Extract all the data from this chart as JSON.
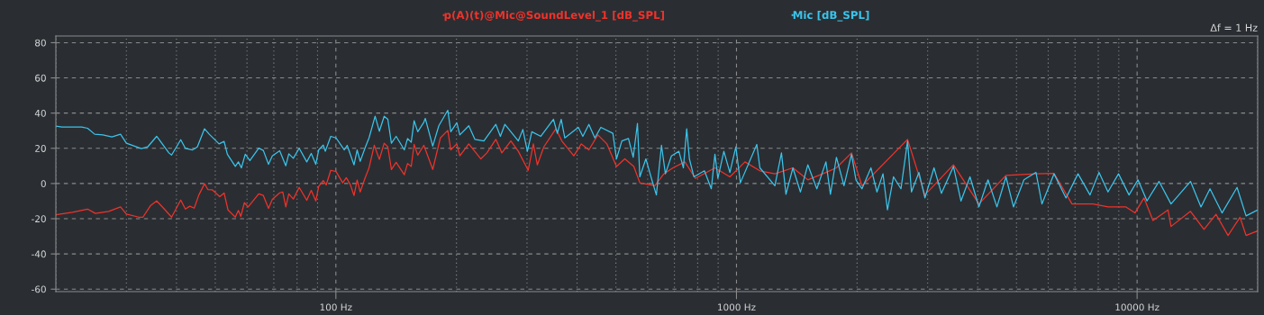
{
  "chart_data": {
    "type": "line",
    "log": "x",
    "grid": true,
    "legend": "top",
    "line_style": "solid",
    "xlim": [
      20,
      20000
    ],
    "ylim": [
      -61.4,
      83.8
    ],
    "xticks": [
      {
        "value": 100,
        "label": "100 Hz"
      },
      {
        "value": 1000,
        "label": "1000 Hz"
      },
      {
        "value": 10000,
        "label": "10000 Hz"
      }
    ],
    "yticks": [
      -60,
      -40,
      -20,
      0,
      20,
      40,
      60,
      80
    ],
    "annotations": [
      "Δf = 1 Hz"
    ],
    "series": [
      {
        "name": "p(A)(t)@Mic@SoundLevel_1 [dB_SPL]",
        "color": "#f0322a",
        "x": [
          20,
          22.0,
          24.0,
          25.1,
          27.1,
          29.0,
          30.0,
          32.2,
          33.0,
          34.5,
          35.7,
          37.3,
          38.9,
          41.0,
          42.1,
          43.2,
          44.3,
          45.5,
          47.0,
          47.9,
          49.1,
          51.3,
          52.6,
          53.8,
          56.1,
          57.1,
          57.9,
          59.1,
          60.4,
          64.2,
          65.9,
          67.9,
          69.4,
          72.4,
          73.7,
          75.0,
          76.3,
          78.3,
          81.0,
          84.6,
          86.8,
          89.1,
          90.6,
          93.0,
          94.6,
          97.1,
          100.1,
          104,
          106.2,
          108.6,
          111,
          113,
          115,
          118.4,
          121,
          124.7,
          128.4,
          132,
          134.8,
          137.6,
          141.4,
          148.2,
          151,
          154.2,
          156.8,
          160.1,
          165.8,
          174.5,
          182.3,
          190.3,
          193.6,
          200.4,
          203.9,
          214.7,
          230.1,
          238.2,
          250.8,
          259.6,
          273.4,
          285.4,
          302.1,
          311.1,
          318.3,
          330.4,
          354.1,
          366.4,
          392.6,
          409.9,
          428.1,
          450.8,
          474.9,
          501.7,
          526.3,
          554.3,
          573.8,
          625.6,
          658.8,
          694.0,
          743.4,
          789.7,
          883.5,
          962.7,
          1050,
          1144,
          1247,
          1383,
          1507,
          1672,
          1776,
          1937,
          2057,
          2673,
          2954,
          3480,
          4029,
          4706,
          5593,
          6202,
          6879,
          7762,
          8459,
          9382,
          9880,
          10405,
          10957,
          11947,
          12153,
          13591,
          14689,
          15740,
          16866,
          18072,
          18707,
          20000
        ],
        "values": [
          -17.7,
          -16.4,
          -14.5,
          -17.0,
          -15.8,
          -13.3,
          -17.4,
          -19.1,
          -19.1,
          -12.4,
          -9.9,
          -14.5,
          -19.1,
          -9.4,
          -14.5,
          -12.9,
          -14.0,
          -6.5,
          -0.1,
          -3.4,
          -3.5,
          -7.5,
          -5.4,
          -15.0,
          -19.1,
          -15.3,
          -18.7,
          -10.9,
          -13.3,
          -5.9,
          -6.8,
          -14.1,
          -9.0,
          -5.3,
          -4.8,
          -13.3,
          -5.9,
          -8.8,
          -2.2,
          -9.5,
          -3.9,
          -9.9,
          -1.7,
          1.7,
          -0.8,
          7.5,
          6.8,
          0.4,
          3.3,
          -0.5,
          -6.8,
          1.9,
          -4.8,
          3.4,
          8.9,
          21.7,
          13.7,
          22.9,
          20.8,
          7.9,
          12.0,
          5.0,
          11.4,
          9.7,
          22.2,
          16.1,
          21.7,
          8.0,
          25.9,
          30.2,
          19.1,
          22.5,
          15.7,
          22.5,
          14.0,
          17.4,
          25.1,
          17.4,
          24.2,
          18.3,
          7.5,
          22.5,
          10.6,
          20.8,
          31.1,
          24.2,
          15.7,
          22.5,
          19.1,
          27.6,
          22.5,
          9.7,
          14.0,
          9.7,
          0.4,
          -1.3,
          5.5,
          8.9,
          12.3,
          2.9,
          8.9,
          3.8,
          12.3,
          7.2,
          5.5,
          8.9,
          2.1,
          6.3,
          8.9,
          17.4,
          -1.3,
          25.1,
          -6.5,
          10.6,
          -11.6,
          4.6,
          5.5,
          5.8,
          -11.6,
          -11.6,
          -13.3,
          -13.3,
          -16.7,
          -8.2,
          -21.0,
          -15.0,
          -24.4,
          -15.8,
          -26.1,
          -17.5,
          -29.5,
          -19.2,
          -29.5,
          -26.9
        ]
      },
      {
        "name": "Mic [dB_SPL]",
        "color": "#3bc4ea",
        "x": [
          20,
          20.7,
          23.2,
          24.0,
          25.0,
          26.2,
          27.6,
          29.0,
          30.0,
          32.7,
          33.9,
          35.7,
          38.3,
          38.9,
          41.0,
          42.1,
          43.9,
          45.1,
          47.0,
          48.3,
          51.1,
          52.6,
          53.6,
          56.1,
          57.1,
          58.1,
          59.4,
          61.0,
          64.2,
          65.9,
          67.9,
          69.4,
          72.4,
          75.0,
          76.3,
          78.3,
          81.0,
          84.6,
          86.8,
          89.1,
          90.6,
          93.0,
          94.1,
          97.1,
          100.1,
          105,
          106.7,
          111,
          113,
          115,
          118.4,
          121,
          125.3,
          128.4,
          132,
          134.8,
          137.6,
          141.4,
          148.2,
          151,
          154.2,
          156.8,
          160.1,
          165.8,
          167.2,
          174.5,
          180.7,
          190.3,
          193.6,
          200.4,
          203.9,
          214.7,
          222.3,
          234.1,
          250.8,
          257.4,
          264.1,
          285.4,
          292.9,
          300.6,
          308.4,
          324.8,
          349.2,
          357.1,
          365.2,
          372.8,
          402.9,
          413.5,
          428.1,
          443.1,
          458.6,
          491.4,
          501.7,
          517.5,
          537.4,
          552.4,
          565.9,
          573.8,
          594.0,
          614.9,
          631.0,
          649.8,
          664.6,
          688.0,
          718.2,
          737.0,
          751.2,
          762.9,
          782.8,
          831.7,
          865.3,
          883.5,
          898.7,
          930.0,
          962.7,
          996.6,
          1022.6,
          1124,
          1144,
          1247,
          1295,
          1329,
          1383,
          1444,
          1507,
          1587,
          1672,
          1716,
          1776,
          1855,
          1937,
          1987,
          2057,
          2166,
          2242,
          2321,
          2382,
          2466,
          2574,
          2673,
          2734,
          2854,
          2954,
          3112,
          3248,
          3480,
          3634,
          3827,
          4029,
          4244,
          4468,
          4706,
          4914,
          5219,
          5593,
          5788,
          6202,
          6646,
          7120,
          7629,
          8034,
          8459,
          8987,
          9546,
          10050,
          10585,
          11342,
          12153,
          13591,
          14436,
          15205,
          16293,
          17763,
          18707,
          20000
        ],
        "values": [
          32.6,
          32.1,
          32.1,
          31.4,
          28.0,
          27.6,
          26.5,
          28.0,
          22.9,
          19.8,
          20.8,
          26.8,
          17.4,
          16.2,
          24.9,
          20.0,
          19.1,
          20.8,
          31.1,
          28.0,
          22.5,
          23.9,
          16.6,
          9.7,
          12.3,
          8.9,
          16.6,
          13.0,
          20.1,
          18.8,
          10.9,
          15.7,
          18.6,
          10.1,
          16.9,
          14.3,
          20.0,
          12.3,
          17.1,
          10.9,
          19.1,
          21.8,
          18.3,
          26.8,
          25.9,
          19.1,
          21.7,
          10.6,
          19.1,
          12.6,
          20.5,
          25.9,
          38.2,
          29.7,
          38.2,
          36.5,
          22.9,
          26.8,
          19.1,
          25.6,
          23.4,
          35.7,
          29.4,
          34.8,
          37.0,
          21.2,
          32.8,
          41.6,
          29.4,
          34.5,
          27.6,
          32.8,
          25.1,
          24.2,
          33.6,
          26.8,
          33.6,
          24.2,
          30.7,
          18.3,
          29.4,
          26.8,
          36.5,
          28.5,
          36.5,
          25.9,
          31.9,
          26.8,
          33.6,
          25.9,
          31.9,
          28.5,
          14.0,
          24.2,
          25.6,
          14.9,
          34.1,
          3.8,
          14.0,
          2.1,
          -6.5,
          21.7,
          5.5,
          15.7,
          18.3,
          8.9,
          31.1,
          14.0,
          3.8,
          7.2,
          -3.0,
          16.6,
          2.9,
          18.3,
          6.3,
          20.8,
          0.4,
          22.2,
          8.9,
          -1.3,
          17.4,
          -6.1,
          8.9,
          -4.8,
          10.6,
          -3.0,
          12.3,
          -6.1,
          14.9,
          -1.3,
          16.6,
          2.1,
          -3.0,
          8.9,
          -4.8,
          5.5,
          -15.0,
          3.8,
          -3.0,
          24.2,
          -4.8,
          6.3,
          -8.2,
          8.9,
          -5.6,
          9.7,
          -9.9,
          3.8,
          -13.3,
          2.1,
          -13.3,
          3.8,
          -13.3,
          2.1,
          6.3,
          -11.6,
          5.5,
          -8.2,
          5.5,
          -6.5,
          6.3,
          -4.8,
          5.5,
          -6.5,
          2.1,
          -9.9,
          1.2,
          -11.6,
          1.2,
          -13.3,
          -3.0,
          -16.7,
          -2.2,
          -18.4,
          -15.0
        ]
      }
    ]
  }
}
